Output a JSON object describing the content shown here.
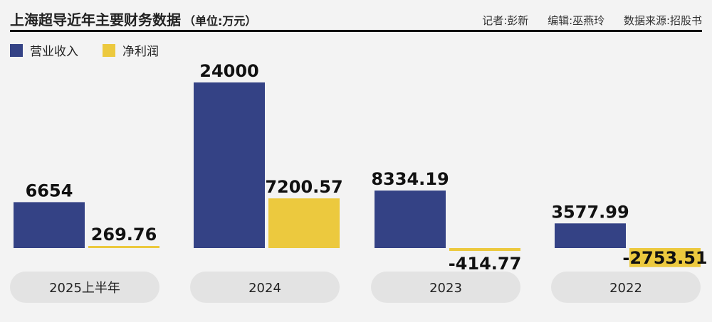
{
  "header": {
    "title": "上海超导近年主要财务数据",
    "unit": "（单位:万元）",
    "reporter": "记者:彭新",
    "editor": "编辑:巫燕玲",
    "source": "数据来源:招股书"
  },
  "colors": {
    "revenue": "#344285",
    "profit": "#ecc93e",
    "pill": "#e3e3e3",
    "background": "#f3f3f3"
  },
  "chart_data": {
    "type": "bar",
    "categories": [
      "2025上半年",
      "2024",
      "2023",
      "2022"
    ],
    "series": [
      {
        "name": "营业收入",
        "values": [
          6654,
          24000,
          8334.19,
          3577.99
        ],
        "labels": [
          "6654",
          "24000",
          "8334.19",
          "3577.99"
        ]
      },
      {
        "name": "净利润",
        "values": [
          269.76,
          7200.57,
          -414.77,
          -2753.51
        ],
        "labels": [
          "269.76",
          "7200.57",
          "-414.77",
          "-2753.51"
        ]
      }
    ],
    "legend_position": "top-left",
    "grid": false,
    "axes_visible": false
  }
}
